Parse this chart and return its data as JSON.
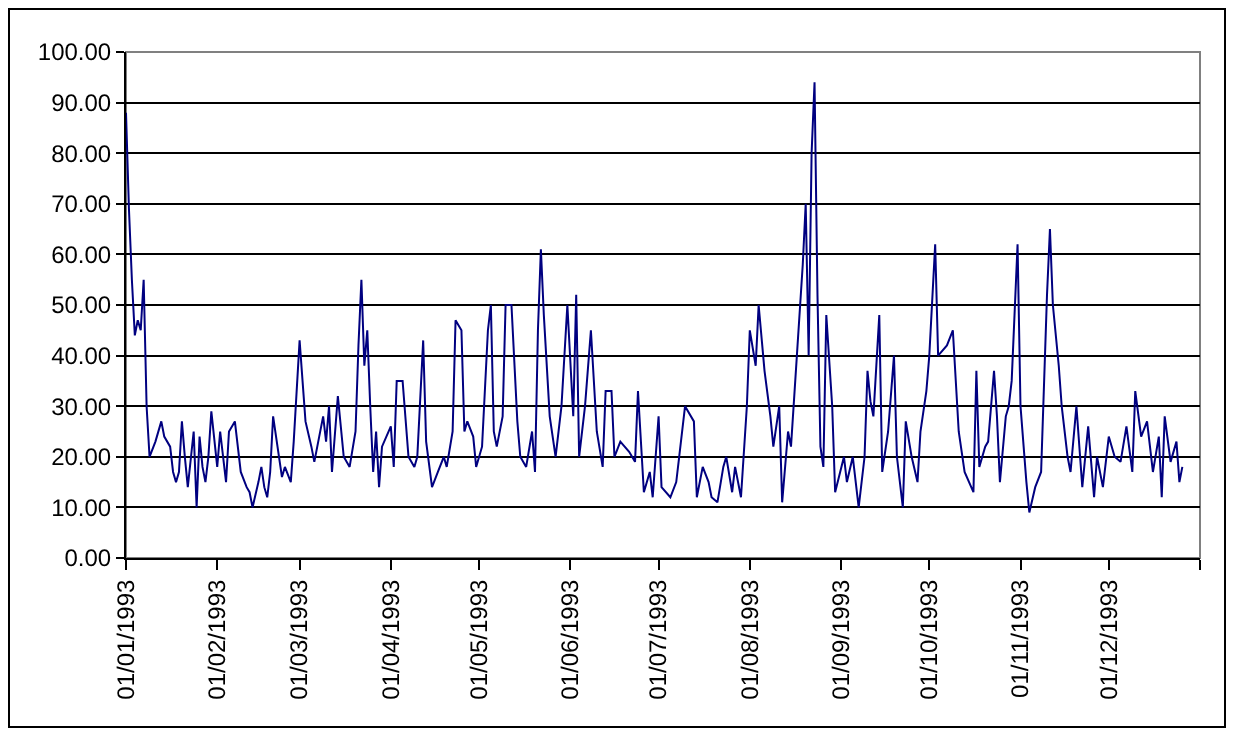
{
  "chart_data": {
    "type": "line",
    "grid": "y",
    "marker": "none",
    "line_style": "solid",
    "xlim": [
      "1993-01-01",
      "1994-01-01"
    ],
    "xticks": [
      {
        "value": "1993-01-01",
        "label": "01/01/1993"
      },
      {
        "value": "1993-02-01",
        "label": "01/02/1993"
      },
      {
        "value": "1993-03-01",
        "label": "01/03/1993"
      },
      {
        "value": "1993-04-01",
        "label": "01/04/1993"
      },
      {
        "value": "1993-05-01",
        "label": "01/05/1993"
      },
      {
        "value": "1993-06-01",
        "label": "01/06/1993"
      },
      {
        "value": "1993-07-01",
        "label": "01/07/1993"
      },
      {
        "value": "1993-08-01",
        "label": "01/08/1993"
      },
      {
        "value": "1993-09-01",
        "label": "01/09/1993"
      },
      {
        "value": "1993-10-01",
        "label": "01/10/1993"
      },
      {
        "value": "1993-11-01",
        "label": "01/11/1993"
      },
      {
        "value": "1993-12-01",
        "label": "01/12/1993"
      },
      {
        "value": "1994-01-01",
        "label": null
      }
    ],
    "ylim": [
      0,
      100
    ],
    "yticks": [
      {
        "value": 0,
        "label": "0.00"
      },
      {
        "value": 10,
        "label": "10.00"
      },
      {
        "value": 20,
        "label": "20.00"
      },
      {
        "value": 30,
        "label": "30.00"
      },
      {
        "value": 40,
        "label": "40.00"
      },
      {
        "value": 50,
        "label": "50.00"
      },
      {
        "value": 60,
        "label": "60.00"
      },
      {
        "value": 70,
        "label": "70.00"
      },
      {
        "value": 80,
        "label": "80.00"
      },
      {
        "value": 90,
        "label": "90.00"
      },
      {
        "value": 100,
        "label": "100.00"
      }
    ],
    "series": [
      {
        "color": "#000080",
        "x": [
          "1993-01-01",
          "1993-01-02",
          "1993-01-03",
          "1993-01-04",
          "1993-01-05",
          "1993-01-06",
          "1993-01-07",
          "1993-01-08",
          "1993-01-09",
          "1993-01-11",
          "1993-01-13",
          "1993-01-14",
          "1993-01-16",
          "1993-01-17",
          "1993-01-18",
          "1993-01-19",
          "1993-01-20",
          "1993-01-21",
          "1993-01-22",
          "1993-01-24",
          "1993-01-25",
          "1993-01-26",
          "1993-01-27",
          "1993-01-28",
          "1993-01-29",
          "1993-01-30",
          "1993-02-01",
          "1993-02-02",
          "1993-02-04",
          "1993-02-05",
          "1993-02-07",
          "1993-02-09",
          "1993-02-11",
          "1993-02-12",
          "1993-02-13",
          "1993-02-15",
          "1993-02-16",
          "1993-02-17",
          "1993-02-18",
          "1993-02-19",
          "1993-02-20",
          "1993-02-22",
          "1993-02-23",
          "1993-02-24",
          "1993-02-26",
          "1993-02-27",
          "1993-03-01",
          "1993-03-02",
          "1993-03-03",
          "1993-03-05",
          "1993-03-06",
          "1993-03-09",
          "1993-03-10",
          "1993-03-11",
          "1993-03-12",
          "1993-03-14",
          "1993-03-16",
          "1993-03-18",
          "1993-03-20",
          "1993-03-21",
          "1993-03-22",
          "1993-03-23",
          "1993-03-24",
          "1993-03-25",
          "1993-03-26",
          "1993-03-27",
          "1993-03-28",
          "1993-03-29",
          "1993-04-01",
          "1993-04-02",
          "1993-04-03",
          "1993-04-05",
          "1993-04-07",
          "1993-04-09",
          "1993-04-10",
          "1993-04-12",
          "1993-04-13",
          "1993-04-15",
          "1993-04-17",
          "1993-04-19",
          "1993-04-20",
          "1993-04-22",
          "1993-04-23",
          "1993-04-25",
          "1993-04-26",
          "1993-04-27",
          "1993-04-29",
          "1993-04-30",
          "1993-05-02",
          "1993-05-04",
          "1993-05-05",
          "1993-05-06",
          "1993-05-07",
          "1993-05-09",
          "1993-05-10",
          "1993-05-12",
          "1993-05-14",
          "1993-05-15",
          "1993-05-17",
          "1993-05-19",
          "1993-05-20",
          "1993-05-21",
          "1993-05-22",
          "1993-05-23",
          "1993-05-25",
          "1993-05-27",
          "1993-05-29",
          "1993-05-31",
          "1993-06-02",
          "1993-06-03",
          "1993-06-04",
          "1993-06-06",
          "1993-06-08",
          "1993-06-10",
          "1993-06-12",
          "1993-06-13",
          "1993-06-15",
          "1993-06-16",
          "1993-06-18",
          "1993-06-21",
          "1993-06-23",
          "1993-06-24",
          "1993-06-26",
          "1993-06-28",
          "1993-06-29",
          "1993-07-01",
          "1993-07-02",
          "1993-07-05",
          "1993-07-07",
          "1993-07-08",
          "1993-07-10",
          "1993-07-13",
          "1993-07-14",
          "1993-07-16",
          "1993-07-18",
          "1993-07-19",
          "1993-07-21",
          "1993-07-23",
          "1993-07-24",
          "1993-07-26",
          "1993-07-27",
          "1993-07-29",
          "1993-07-31",
          "1993-08-01",
          "1993-08-03",
          "1993-08-04",
          "1993-08-06",
          "1993-08-08",
          "1993-08-09",
          "1993-08-11",
          "1993-08-12",
          "1993-08-14",
          "1993-08-15",
          "1993-08-17",
          "1993-08-19",
          "1993-08-20",
          "1993-08-21",
          "1993-08-22",
          "1993-08-23",
          "1993-08-24",
          "1993-08-25",
          "1993-08-26",
          "1993-08-27",
          "1993-08-29",
          "1993-08-30",
          "1993-09-02",
          "1993-09-03",
          "1993-09-05",
          "1993-09-07",
          "1993-09-09",
          "1993-09-10",
          "1993-09-11",
          "1993-09-12",
          "1993-09-14",
          "1993-09-15",
          "1993-09-17",
          "1993-09-19",
          "1993-09-20",
          "1993-09-22",
          "1993-09-23",
          "1993-09-25",
          "1993-09-27",
          "1993-09-28",
          "1993-09-30",
          "1993-10-01",
          "1993-10-03",
          "1993-10-04",
          "1993-10-07",
          "1993-10-09",
          "1993-10-11",
          "1993-10-13",
          "1993-10-16",
          "1993-10-17",
          "1993-10-18",
          "1993-10-20",
          "1993-10-21",
          "1993-10-23",
          "1993-10-24",
          "1993-10-25",
          "1993-10-27",
          "1993-10-28",
          "1993-10-29",
          "1993-10-31",
          "1993-11-01",
          "1993-11-03",
          "1993-11-04",
          "1993-11-06",
          "1993-11-08",
          "1993-11-10",
          "1993-11-11",
          "1993-11-12",
          "1993-11-14",
          "1993-11-15",
          "1993-11-17",
          "1993-11-18",
          "1993-11-20",
          "1993-11-22",
          "1993-11-24",
          "1993-11-26",
          "1993-11-27",
          "1993-11-29",
          "1993-12-01",
          "1993-12-03",
          "1993-12-05",
          "1993-12-07",
          "1993-12-09",
          "1993-12-10",
          "1993-12-12",
          "1993-12-14",
          "1993-12-16",
          "1993-12-18",
          "1993-12-19",
          "1993-12-20",
          "1993-12-22",
          "1993-12-24",
          "1993-12-25",
          "1993-12-26"
        ],
        "values": [
          88,
          69,
          55,
          44,
          47,
          45,
          55,
          30,
          20,
          23,
          27,
          24,
          22,
          17,
          15,
          17,
          27,
          20,
          14,
          25,
          10,
          24,
          18,
          15,
          20,
          29,
          18,
          25,
          15,
          25,
          27,
          17,
          14,
          13,
          10,
          15,
          18,
          14,
          12,
          17,
          28,
          20,
          16,
          18,
          15,
          23,
          43,
          35,
          27,
          22,
          19,
          28,
          23,
          30,
          17,
          32,
          20,
          18,
          25,
          42,
          55,
          38,
          45,
          30,
          17,
          25,
          14,
          22,
          26,
          18,
          35,
          35,
          20,
          18,
          20,
          43,
          23,
          14,
          17,
          20,
          18,
          25,
          47,
          45,
          25,
          27,
          24,
          18,
          22,
          45,
          50,
          25,
          22,
          28,
          50,
          50,
          27,
          20,
          18,
          25,
          17,
          45,
          61,
          48,
          28,
          20,
          30,
          50,
          28,
          52,
          20,
          30,
          45,
          25,
          18,
          33,
          33,
          20,
          23,
          21,
          19,
          33,
          13,
          17,
          12,
          28,
          14,
          12,
          15,
          20,
          30,
          27,
          12,
          18,
          15,
          12,
          11,
          18,
          20,
          13,
          18,
          12,
          30,
          45,
          38,
          50,
          37,
          28,
          22,
          30,
          11,
          25,
          22,
          40,
          58,
          70,
          40,
          80,
          94,
          52,
          22,
          18,
          48,
          30,
          13,
          20,
          15,
          20,
          10,
          20,
          37,
          31,
          28,
          48,
          17,
          25,
          40,
          20,
          10,
          27,
          20,
          15,
          25,
          33,
          40,
          62,
          40,
          42,
          45,
          25,
          17,
          13,
          37,
          18,
          22,
          23,
          37,
          28,
          15,
          28,
          30,
          35,
          62,
          30,
          15,
          9,
          14,
          17,
          52,
          65,
          50,
          38,
          30,
          20,
          17,
          30,
          14,
          26,
          12,
          20,
          14,
          24,
          20,
          19,
          26,
          17,
          33,
          24,
          27,
          17,
          24,
          12,
          28,
          19,
          23,
          15,
          18
        ]
      }
    ]
  }
}
